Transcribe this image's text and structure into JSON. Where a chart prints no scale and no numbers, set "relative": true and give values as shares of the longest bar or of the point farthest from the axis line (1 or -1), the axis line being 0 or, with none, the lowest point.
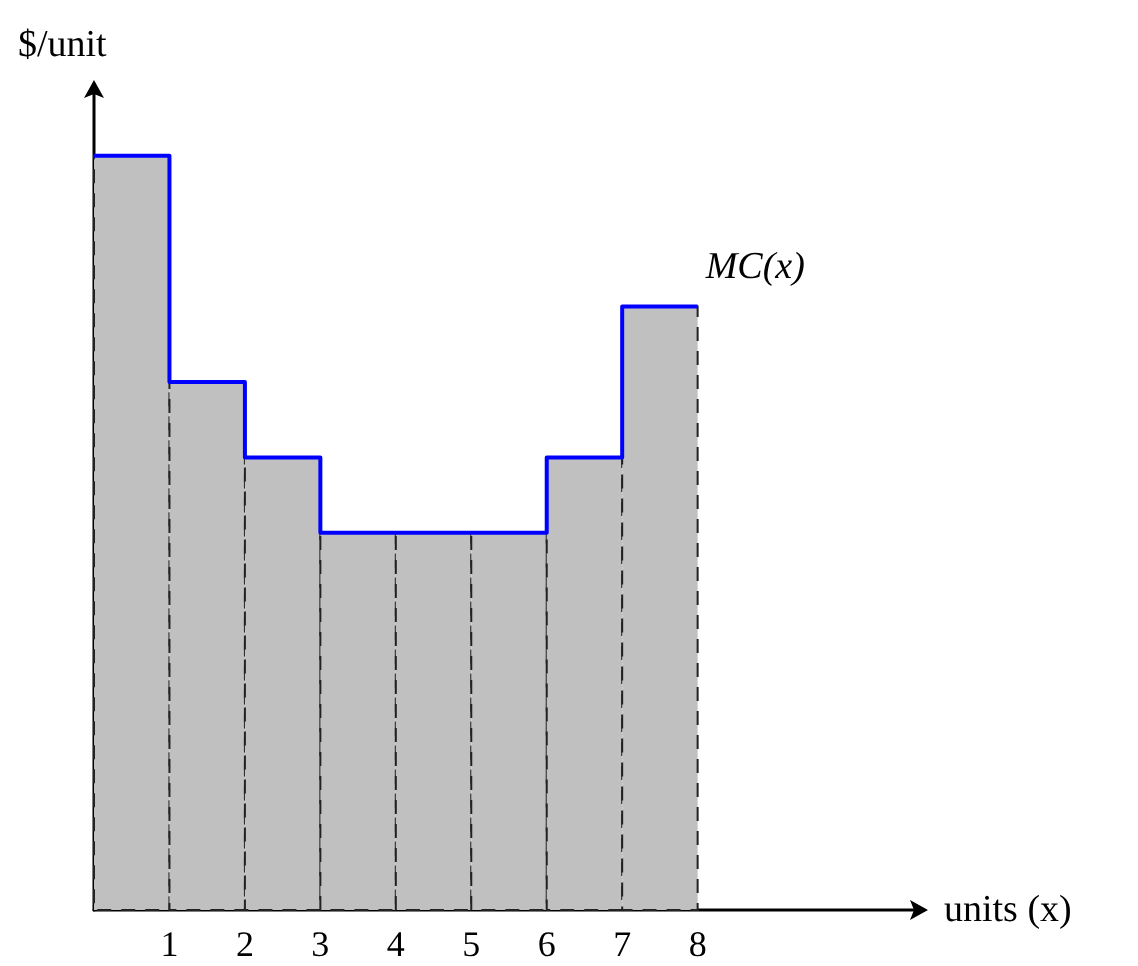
{
  "chart_data": {
    "type": "histogram",
    "relative": true,
    "xlabel": "units (x)",
    "ylabel": "$/unit",
    "bins": [
      0,
      1,
      2,
      3,
      4,
      5,
      6,
      7,
      8
    ],
    "xlim": [
      0,
      11
    ],
    "xticks": [
      1,
      2,
      3,
      4,
      5,
      6,
      7,
      8
    ],
    "series": [
      {
        "color": "#c0c0c0",
        "values": [
          1,
          0.7,
          0.6,
          0.5,
          0.5,
          0.5,
          0.6,
          0.8
        ]
      },
      {
        "type": "step",
        "name": "MC(x)",
        "color": "#0000ff",
        "x": [
          0,
          1,
          2,
          3,
          4,
          5,
          6,
          7,
          8
        ],
        "values": [
          1,
          0.7,
          0.6,
          0.5,
          0.5,
          0.5,
          0.6,
          0.8,
          0.8
        ]
      }
    ]
  }
}
